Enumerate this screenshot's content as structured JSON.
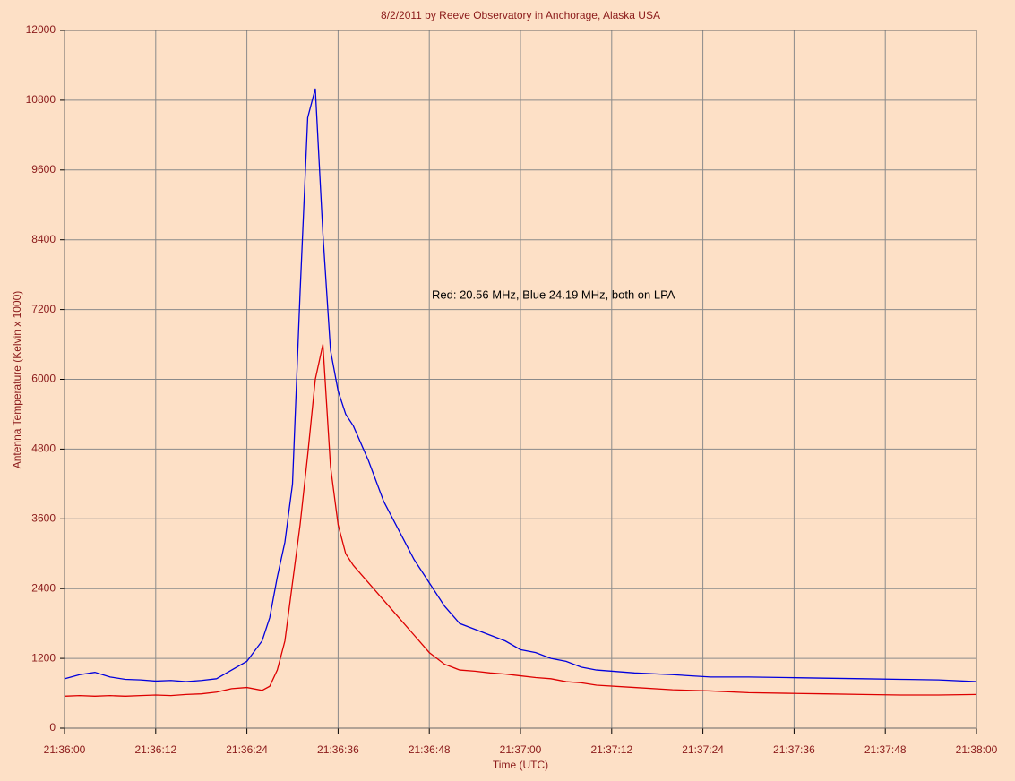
{
  "chart_data": {
    "type": "line",
    "title": "8/2/2011  by  Reeve Observatory  in  Anchorage, Alaska  USA",
    "x_label": "Time (UTC)",
    "y_label": "Antenna Temperature (Kelvin x 1000)",
    "annotation": "Red: 20.56 MHz, Blue 24.19 MHz, both on LPA",
    "x": [
      0,
      2,
      4,
      6,
      8,
      10,
      12,
      14,
      16,
      18,
      20,
      22,
      24,
      26,
      27,
      28,
      29,
      30,
      31,
      32,
      33,
      34,
      35,
      36,
      37,
      38,
      40,
      42,
      44,
      46,
      48,
      50,
      52,
      54,
      56,
      58,
      60,
      62,
      64,
      66,
      68,
      70,
      75,
      80,
      85,
      90,
      95,
      100,
      105,
      110,
      115,
      120
    ],
    "series": [
      {
        "color": "#0000dd",
        "values": [
          850,
          920,
          960,
          880,
          840,
          830,
          810,
          820,
          800,
          820,
          850,
          1000,
          1150,
          1500,
          1900,
          2600,
          3200,
          4200,
          7500,
          10500,
          11000,
          8500,
          6500,
          5800,
          5400,
          5200,
          4600,
          3900,
          3400,
          2900,
          2500,
          2100,
          1800,
          1700,
          1600,
          1500,
          1350,
          1300,
          1200,
          1150,
          1050,
          1000,
          950,
          920,
          880,
          880,
          870,
          860,
          850,
          840,
          830,
          800
        ]
      },
      {
        "color": "#dd0000",
        "values": [
          550,
          560,
          550,
          560,
          550,
          560,
          570,
          560,
          580,
          590,
          620,
          680,
          700,
          650,
          720,
          1000,
          1500,
          2500,
          3500,
          4700,
          6000,
          6600,
          4500,
          3500,
          3000,
          2800,
          2500,
          2200,
          1900,
          1600,
          1300,
          1100,
          1000,
          980,
          950,
          930,
          900,
          870,
          850,
          800,
          780,
          740,
          700,
          660,
          640,
          610,
          600,
          590,
          580,
          570,
          570,
          580
        ]
      }
    ],
    "xlim": [
      0,
      120
    ],
    "xticks": [
      {
        "value": 0,
        "label": "21:36:00"
      },
      {
        "value": 12,
        "label": "21:36:12"
      },
      {
        "value": 24,
        "label": "21:36:24"
      },
      {
        "value": 36,
        "label": "21:36:36"
      },
      {
        "value": 48,
        "label": "21:36:48"
      },
      {
        "value": 60,
        "label": "21:37:00"
      },
      {
        "value": 72,
        "label": "21:37:12"
      },
      {
        "value": 84,
        "label": "21:37:24"
      },
      {
        "value": 96,
        "label": "21:37:36"
      },
      {
        "value": 108,
        "label": "21:37:48"
      },
      {
        "value": 120,
        "label": "21:38:00"
      }
    ],
    "ylim": [
      0,
      12000
    ],
    "yticks": [
      0,
      1200,
      2400,
      3600,
      4800,
      6000,
      7200,
      8400,
      9600,
      10800,
      12000
    ],
    "grid": true
  }
}
